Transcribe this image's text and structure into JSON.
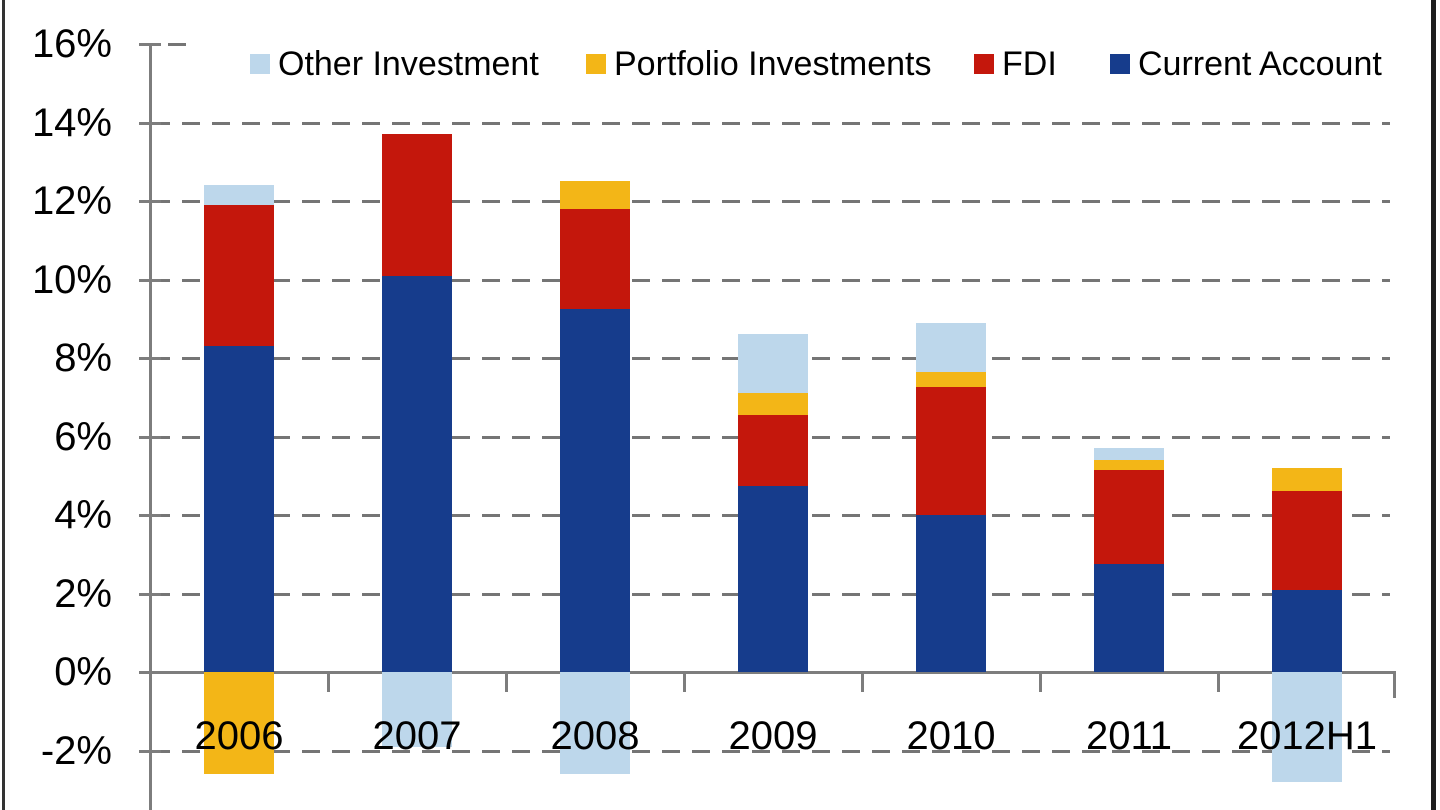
{
  "chart_data": {
    "type": "bar",
    "stacked": true,
    "title": "",
    "xlabel": "",
    "ylabel": "",
    "categories": [
      "2006",
      "2007",
      "2008",
      "2009",
      "2010",
      "2011",
      "2012H1"
    ],
    "series": [
      {
        "name": "Other Investment",
        "color": "#BDD7EB",
        "values": [
          0.5,
          -1.9,
          -2.6,
          1.5,
          1.25,
          0.3,
          -2.8
        ]
      },
      {
        "name": "Portfolio Investments",
        "color": "#F3B617",
        "values": [
          -2.6,
          0,
          0.7,
          0.55,
          0.4,
          0.25,
          0.6
        ]
      },
      {
        "name": "FDI",
        "color": "#C4170C",
        "values": [
          3.6,
          3.6,
          2.55,
          1.8,
          3.25,
          2.4,
          2.5
        ]
      },
      {
        "name": "Current Account",
        "color": "#163C8C",
        "values": [
          8.3,
          10.1,
          9.25,
          4.75,
          4.0,
          2.75,
          2.1
        ]
      }
    ],
    "stack_order": "reverse of series list (Current Account at bottom)",
    "legend_position": "top",
    "legend_order": [
      "Other Investment",
      "Portfolio Investments",
      "FDI",
      "Current Account"
    ],
    "y_axis": {
      "format": "percent",
      "visible_range": [
        -3.5,
        16
      ],
      "ticks": [
        {
          "label": "16%",
          "value": 16
        },
        {
          "label": "14%",
          "value": 14
        },
        {
          "label": "12%",
          "value": 12
        },
        {
          "label": "10%",
          "value": 10
        },
        {
          "label": "8%",
          "value": 8
        },
        {
          "label": "6%",
          "value": 6
        },
        {
          "label": "4%",
          "value": 4
        },
        {
          "label": "2%",
          "value": 2
        },
        {
          "label": "0%",
          "value": 0
        },
        {
          "label": "-2%",
          "value": -2
        }
      ]
    },
    "gridlines": "dashed horizontal, gray, drawn behind bars",
    "stack_tops_pct": [
      12.4,
      13.7,
      12.5,
      8.6,
      8.9,
      5.7,
      5.2
    ]
  },
  "colors": {
    "background": "#FFFFFF",
    "axis": "#7D7D7D",
    "gridline": "#757575",
    "text": "#000000",
    "edge_border_left": "#333333",
    "edge_border_right": "#1E1E1E",
    "series_other_investment": "#BDD7EB",
    "series_portfolio_investments": "#F3B617",
    "series_fdi": "#C4170C",
    "series_current_account": "#163C8C"
  }
}
